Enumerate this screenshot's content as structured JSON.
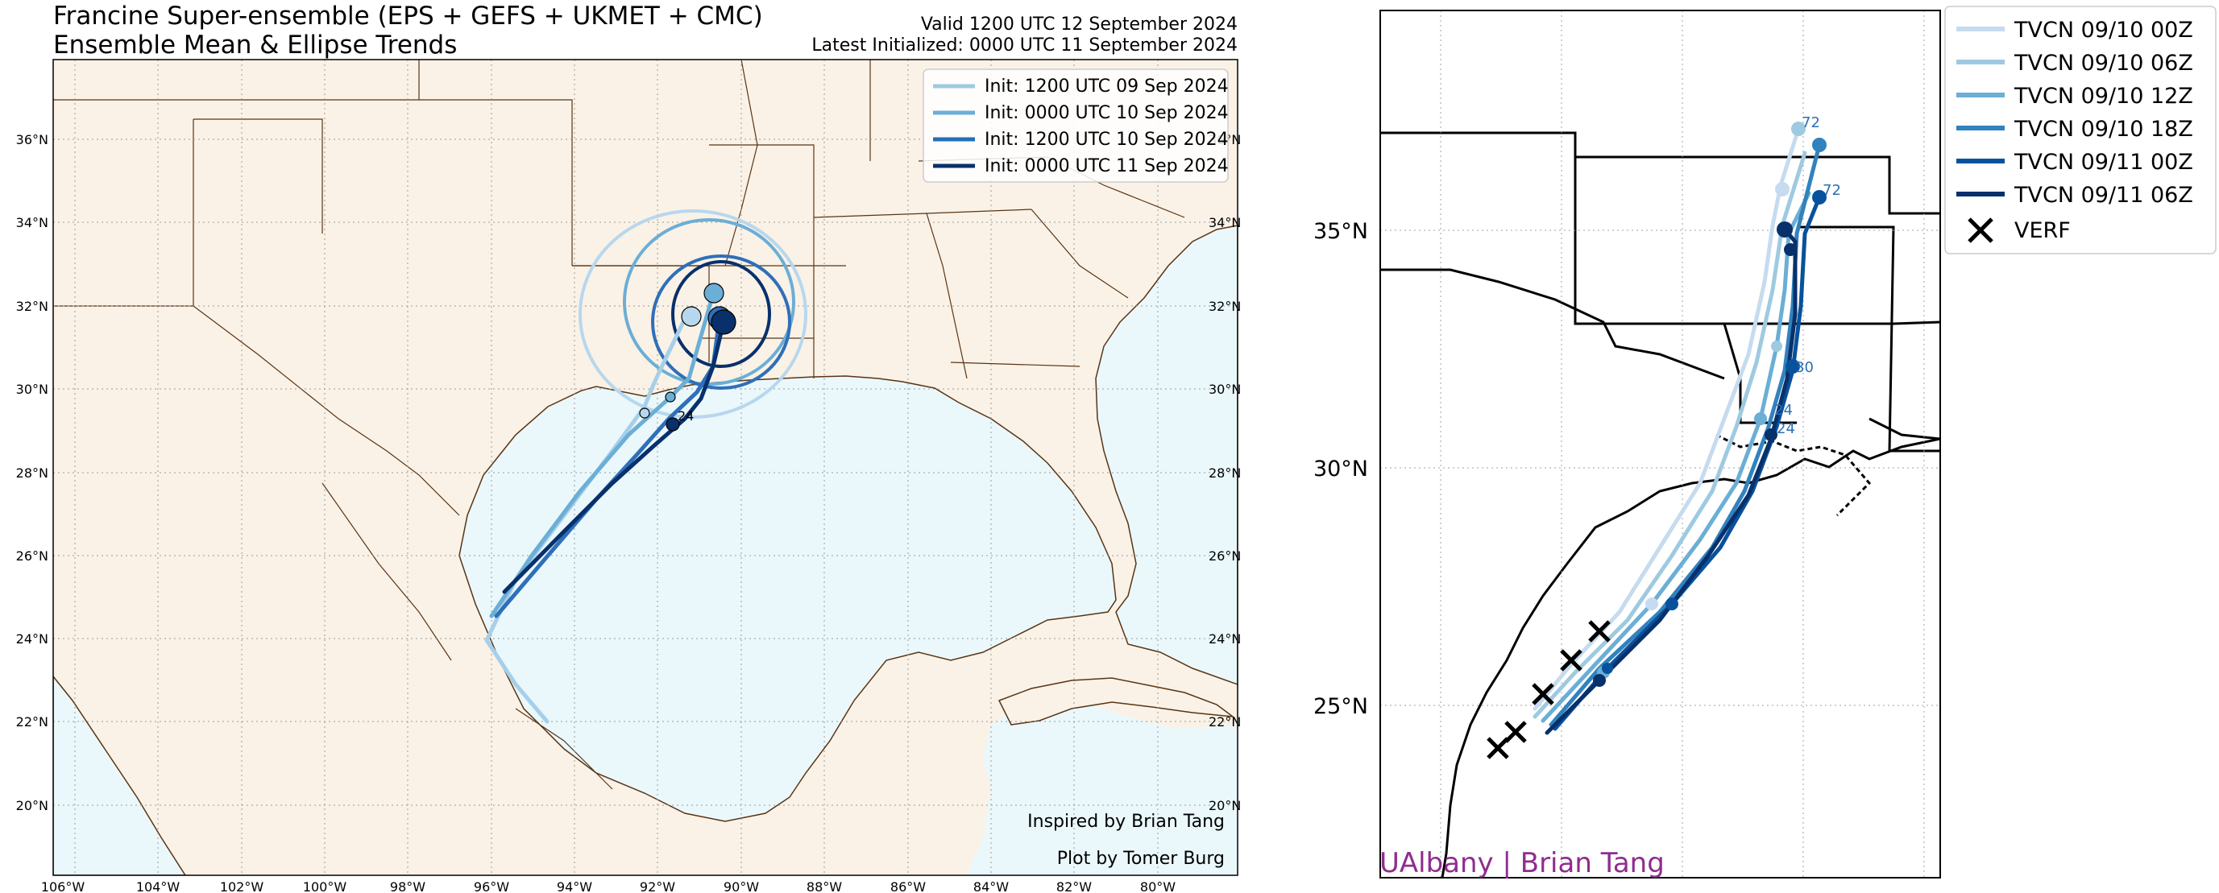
{
  "header": {
    "title_line1": "Francine Super-ensemble (EPS + GEFS + UKMET + CMC)",
    "title_line2": "Ensemble Mean & Ellipse Trends",
    "valid": "Valid 1200 UTC 12 September 2024",
    "latest": "Latest Initialized: 0000 UTC 11 September 2024"
  },
  "left_map": {
    "lon_ticks": [
      "106°W",
      "104°W",
      "102°W",
      "100°W",
      "98°W",
      "96°W",
      "94°W",
      "92°W",
      "90°W",
      "88°W",
      "86°W",
      "84°W",
      "82°W",
      "80°W"
    ],
    "lat_ticks": [
      "20°N",
      "22°N",
      "24°N",
      "26°N",
      "28°N",
      "30°N",
      "32°N",
      "34°N",
      "36°N"
    ],
    "colors": {
      "land": "#faf2e6",
      "ocean": "#eaf8fb",
      "border": "#5a3415"
    },
    "legend": [
      {
        "label": "Init: 1200 UTC 09 Sep 2024",
        "color": "#9ecae1"
      },
      {
        "label": "Init: 0000 UTC 10 Sep 2024",
        "color": "#6baed6"
      },
      {
        "label": "Init: 1200 UTC 10 Sep 2024",
        "color": "#2171b5"
      },
      {
        "label": "Init: 0000 UTC 11 Sep 2024",
        "color": "#08306b"
      }
    ],
    "credit1": "Inspired by Brian Tang",
    "credit2": "Plot by Tomer Burg",
    "forecast_label": "24"
  },
  "right_map": {
    "lat_ticks": [
      "25°N",
      "30°N",
      "35°N"
    ],
    "legend": [
      {
        "label": "TVCN 09/10 00Z",
        "color": "#c6dbef"
      },
      {
        "label": "TVCN 09/10 06Z",
        "color": "#9ecae1"
      },
      {
        "label": "TVCN 09/10 12Z",
        "color": "#6baed6"
      },
      {
        "label": "TVCN 09/10 18Z",
        "color": "#3182bd"
      },
      {
        "label": "TVCN 09/11 00Z",
        "color": "#08519c"
      },
      {
        "label": "TVCN 09/11 06Z",
        "color": "#08306b"
      },
      {
        "label": "VERF",
        "color": "#000000"
      }
    ],
    "forecast_labels": [
      "72",
      "72",
      "30",
      "24",
      "24"
    ],
    "watermark": "UAlbany | Brian Tang"
  }
}
